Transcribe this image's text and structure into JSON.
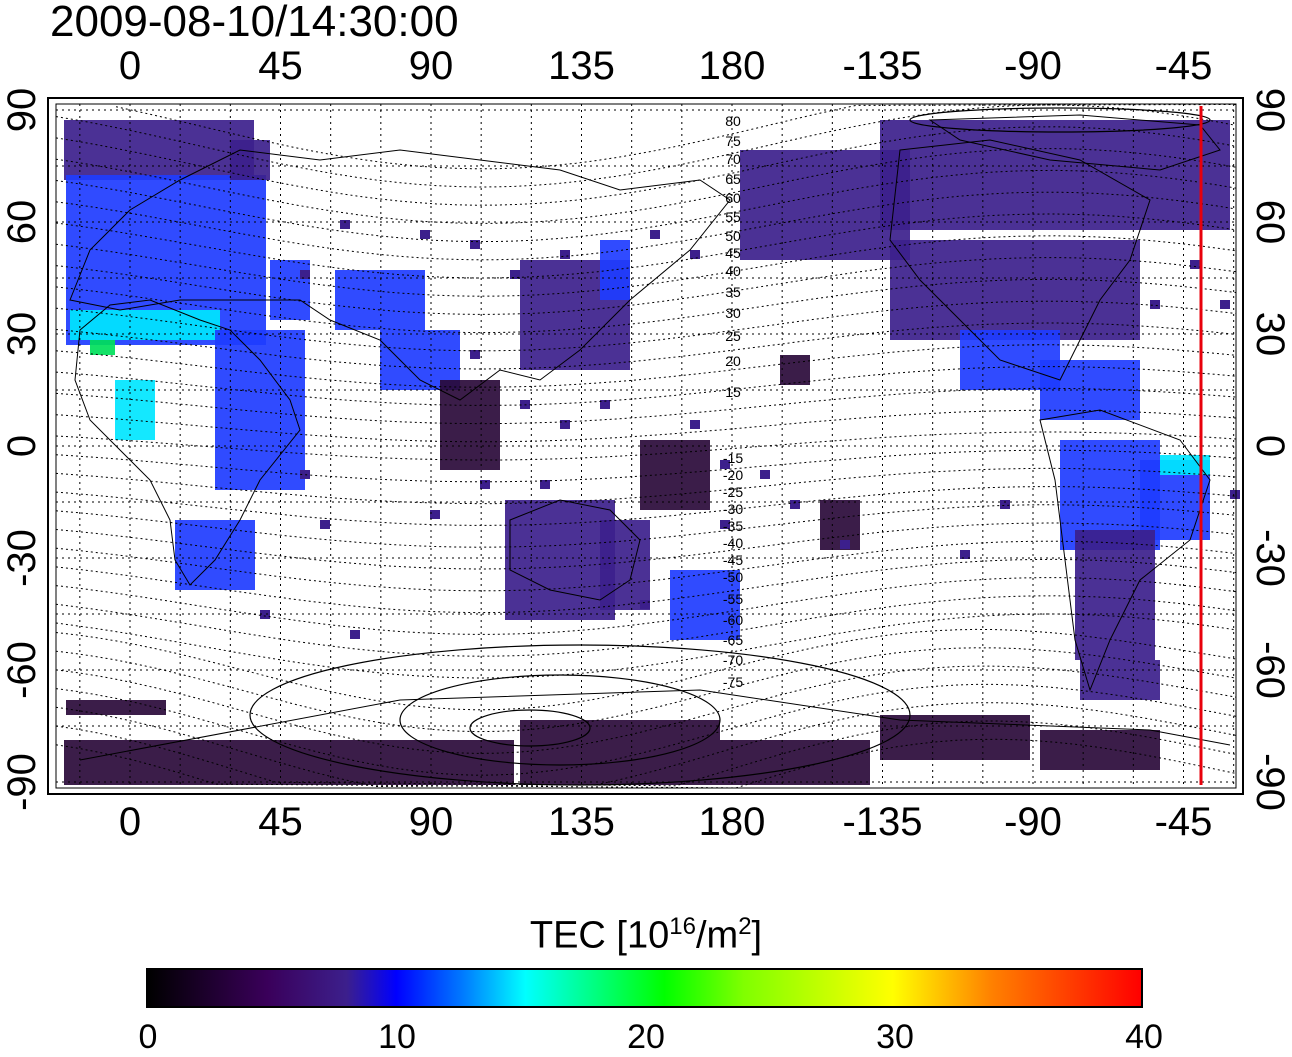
{
  "timestamp": "2009-08-10/14:30:00",
  "lon_ticks_top": [
    "0",
    "45",
    "90",
    "135",
    "180",
    "-135",
    "-90",
    "-45"
  ],
  "lon_ticks_bottom": [
    "0",
    "45",
    "90",
    "135",
    "180",
    "-135",
    "-90",
    "-45"
  ],
  "lat_ticks_left": [
    "90",
    "60",
    "30",
    "0",
    "-30",
    "-60",
    "-90"
  ],
  "lat_ticks_right": [
    "90",
    "60",
    "30",
    "0",
    "-30",
    "-60",
    "-90"
  ],
  "contour_labels": [
    "80",
    "75",
    "70",
    "65",
    "60",
    "55",
    "50",
    "45",
    "40",
    "35",
    "30",
    "25",
    "20",
    "15",
    "-15",
    "-20",
    "-25",
    "-30",
    "-35",
    "-40",
    "-45",
    "-50",
    "-55",
    "-60",
    "-65",
    "-70",
    "-75"
  ],
  "colorbar": {
    "title": "TEC  [10",
    "title_sup": "16",
    "title_mid": "/m",
    "title_sup2": "2",
    "title_end": "]",
    "ticks": [
      "0",
      "10",
      "20",
      "30",
      "40"
    ],
    "min": 0,
    "max": 40
  },
  "colors": {
    "frame": "#000000",
    "terminator_line": "#e8000b",
    "low_tec": "#2a0a3a",
    "mid_tec": "#3c1f8c",
    "blue_tec": "#1e3cff",
    "cyan_tec": "#00e6ff",
    "green_tec": "#00e05a"
  }
}
